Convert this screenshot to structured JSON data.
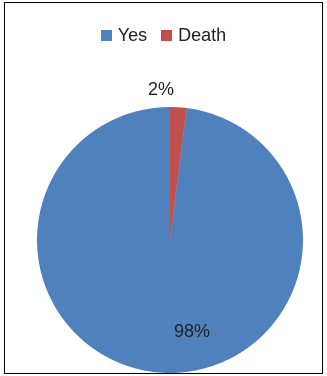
{
  "chart_data": {
    "type": "pie",
    "categories": [
      "Yes",
      "Death"
    ],
    "values": [
      98,
      2
    ],
    "data_labels": [
      "98%",
      "2%"
    ],
    "colors": [
      "#4f81bd",
      "#c0504d"
    ],
    "title": "",
    "legend_position": "top"
  }
}
